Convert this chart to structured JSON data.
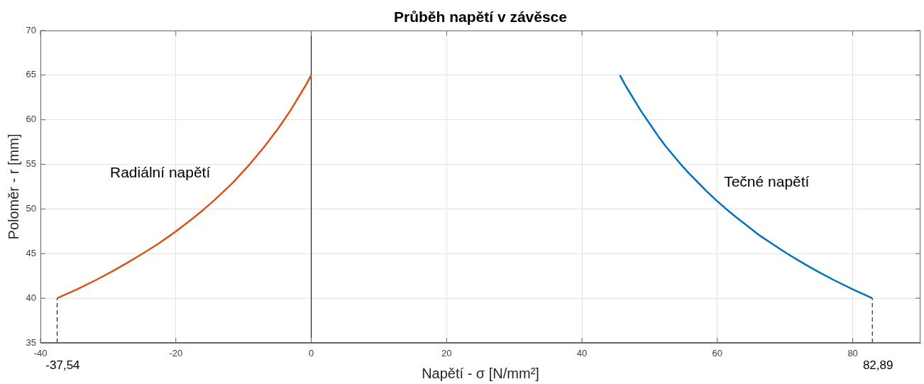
{
  "chart_data": {
    "type": "line",
    "title": "Průběh napětí v závěsce",
    "xlabel": "Napětí - σ [N/mm²]",
    "ylabel": "Poloměr - r [mm]",
    "series": [
      {
        "name": "Radiální napětí",
        "color": "#d95319",
        "line_style": "solid",
        "x": [
          -37.54,
          -34.6,
          -31.9,
          -29.4,
          -27.1,
          -24.9,
          -22.8,
          -20.9,
          -19.1,
          -17.4,
          -15.8,
          -14.3,
          -12.9,
          -11.5,
          -10.3,
          -9.1,
          -8.0,
          -6.9,
          -5.9,
          -4.9,
          -4.0,
          -3.1,
          -2.3,
          -1.5,
          -0.7,
          0
        ],
        "values": [
          40,
          41,
          42,
          43,
          44,
          45,
          46,
          47,
          48,
          49,
          50,
          51,
          52,
          53,
          54,
          55,
          56,
          57,
          58,
          59,
          60,
          61,
          62,
          63,
          64,
          65
        ]
      },
      {
        "name": "Tečné napětí",
        "color": "#0072bd",
        "line_style": "solid",
        "x": [
          82.89,
          80.0,
          77.3,
          74.8,
          72.5,
          70.3,
          68.3,
          66.3,
          64.6,
          62.9,
          61.3,
          59.8,
          58.4,
          57.1,
          55.8,
          54.6,
          53.5,
          52.4,
          51.4,
          50.5,
          49.6,
          48.7,
          47.9,
          47.1,
          46.3,
          45.6
        ],
        "values": [
          40,
          41,
          42,
          43,
          44,
          45,
          46,
          47,
          48,
          49,
          50,
          51,
          52,
          53,
          54,
          55,
          56,
          57,
          58,
          59,
          60,
          61,
          62,
          63,
          64,
          65
        ]
      },
      {
        "color": "#000000",
        "line_style": "dashed",
        "x": [
          -37.54,
          -37.54
        ],
        "values": [
          35,
          40
        ]
      },
      {
        "color": "#000000",
        "line_style": "dashed",
        "x": [
          82.89,
          82.89
        ],
        "values": [
          35,
          40
        ]
      }
    ],
    "xlim": [
      -40,
      90
    ],
    "ylim": [
      35,
      70
    ],
    "xticks": [
      -40,
      -20,
      0,
      20,
      40,
      60,
      80
    ],
    "yticks": [
      35,
      40,
      45,
      50,
      55,
      60,
      65,
      70
    ],
    "grid": true,
    "marker": "none",
    "ref_lines": [
      {
        "axis": "x",
        "value": 0,
        "color": "#000000"
      }
    ],
    "annotations": [
      {
        "text": "-37,54",
        "x": -37.54,
        "y": 35
      },
      {
        "text": "82,89",
        "x": 82.89,
        "y": 35
      }
    ]
  }
}
